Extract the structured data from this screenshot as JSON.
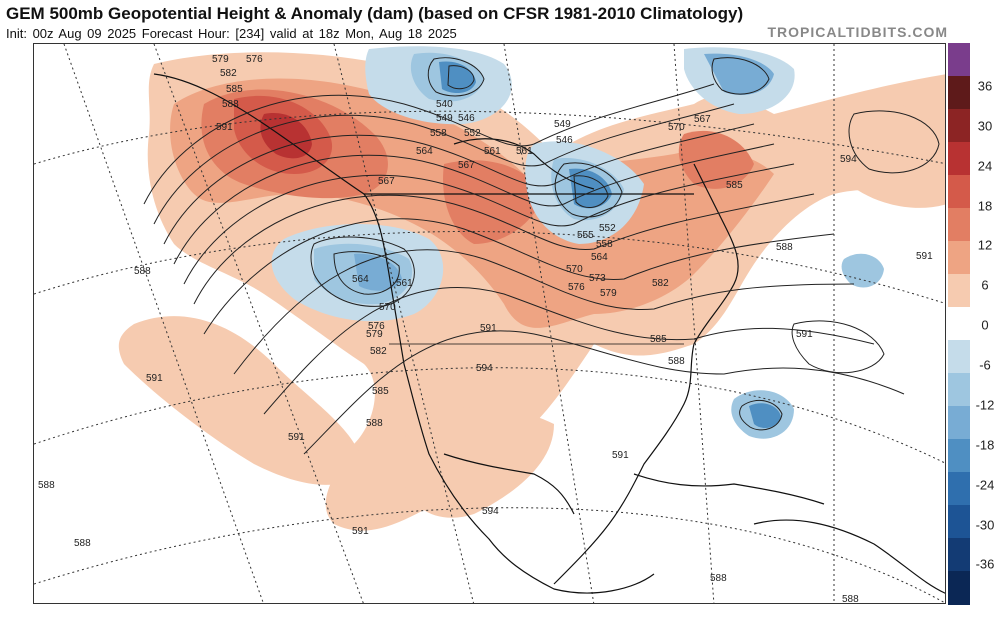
{
  "header": {
    "title": "GEM 500mb Geopotential Height & Anomaly (dam) (based on CFSR 1981-2010 Climatology)",
    "subtitle": "Init: 00z Aug 09 2025   Forecast Hour: [234]   valid at 18z Mon, Aug 18 2025",
    "brand": "TROPICALTIDBITS.COM"
  },
  "colorbar": {
    "ticks": [
      "36",
      "30",
      "24",
      "18",
      "12",
      "6",
      "0",
      "-6",
      "-12",
      "-18",
      "-24",
      "-30",
      "-36"
    ],
    "colors": [
      "#7a3d8c",
      "#5e1a1a",
      "#8c2424",
      "#b83232",
      "#d45a4a",
      "#e27e63",
      "#eea483",
      "#f6cbb0",
      "#ffffff",
      "#c5dcea",
      "#9ec6e0",
      "#78acd4",
      "#4f8fc2",
      "#2f6fae",
      "#1d5495",
      "#133b74",
      "#0b2755"
    ]
  },
  "contour_labels": [
    {
      "text": "579",
      "pos": "nw"
    },
    {
      "text": "576",
      "pos": "nw"
    },
    {
      "text": "582",
      "pos": "nw"
    },
    {
      "text": "585",
      "pos": "nw"
    },
    {
      "text": "588",
      "pos": "nw"
    },
    {
      "text": "591",
      "pos": "nw"
    },
    {
      "text": "540",
      "pos": "hudson"
    },
    {
      "text": "549",
      "pos": "hudson"
    },
    {
      "text": "546",
      "pos": "hudson"
    },
    {
      "text": "558",
      "pos": "hudson"
    },
    {
      "text": "552",
      "pos": "hudson"
    },
    {
      "text": "561",
      "pos": "hudson"
    },
    {
      "text": "564",
      "pos": "canada"
    },
    {
      "text": "567",
      "pos": "canada"
    },
    {
      "text": "561",
      "pos": "canada"
    },
    {
      "text": "549",
      "pos": "quebec"
    },
    {
      "text": "546",
      "pos": "quebec"
    },
    {
      "text": "555",
      "pos": "quebec"
    },
    {
      "text": "552",
      "pos": "quebec"
    },
    {
      "text": "558",
      "pos": "quebec"
    },
    {
      "text": "564",
      "pos": "quebec"
    },
    {
      "text": "570",
      "pos": "quebec"
    },
    {
      "text": "573",
      "pos": "quebec"
    },
    {
      "text": "576",
      "pos": "quebec"
    },
    {
      "text": "579",
      "pos": "quebec"
    },
    {
      "text": "582",
      "pos": "quebec"
    },
    {
      "text": "585",
      "pos": "east"
    },
    {
      "text": "588",
      "pos": "east"
    },
    {
      "text": "567",
      "pos": "greenland"
    },
    {
      "text": "570",
      "pos": "greenland"
    },
    {
      "text": "585",
      "pos": "atlantic"
    },
    {
      "text": "594",
      "pos": "atlantic"
    },
    {
      "text": "588",
      "pos": "atlantic"
    },
    {
      "text": "591",
      "pos": "atlantic"
    },
    {
      "text": "591",
      "pos": "atlantic"
    },
    {
      "text": "564",
      "pos": "westlow"
    },
    {
      "text": "561",
      "pos": "westlow"
    },
    {
      "text": "570",
      "pos": "westlow"
    },
    {
      "text": "576",
      "pos": "westlow"
    },
    {
      "text": "579",
      "pos": "westlow"
    },
    {
      "text": "582",
      "pos": "westlow"
    },
    {
      "text": "567",
      "pos": "westlow"
    },
    {
      "text": "585",
      "pos": "west"
    },
    {
      "text": "588",
      "pos": "west"
    },
    {
      "text": "591",
      "pos": "west"
    },
    {
      "text": "588",
      "pos": "pacific"
    },
    {
      "text": "591",
      "pos": "pacific"
    },
    {
      "text": "591",
      "pos": "us"
    },
    {
      "text": "594",
      "pos": "us"
    },
    {
      "text": "591",
      "pos": "gulf"
    },
    {
      "text": "594",
      "pos": "mexico"
    },
    {
      "text": "591",
      "pos": "mexico"
    },
    {
      "text": "588",
      "pos": "carib"
    },
    {
      "text": "588",
      "pos": "carib"
    },
    {
      "text": "588",
      "pos": "pacific"
    },
    {
      "text": "588",
      "pos": "pacific"
    }
  ]
}
